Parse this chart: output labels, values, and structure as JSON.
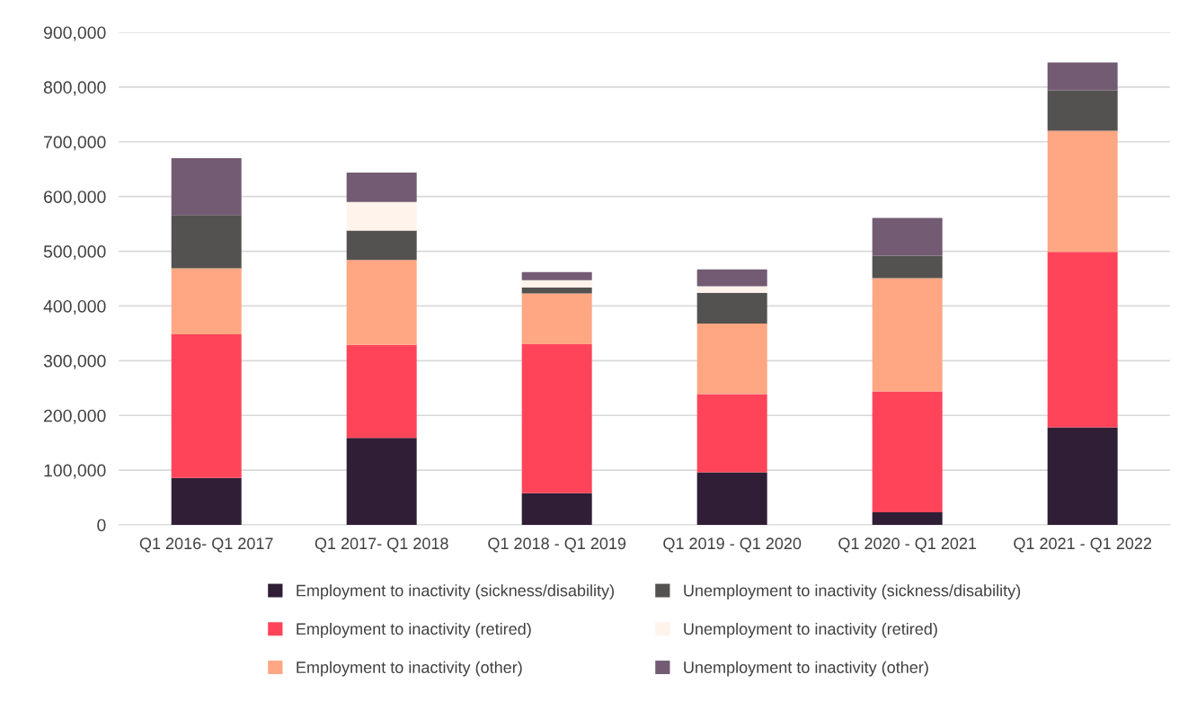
{
  "chart_data": {
    "type": "bar",
    "stacked": true,
    "categories": [
      "Q1 2016- Q1 2017",
      "Q1 2017- Q1 2018",
      "Q1 2018 - Q1 2019",
      "Q1 2019 - Q1 2020",
      "Q1 2020 - Q1 2021",
      "Q1 2021 - Q1 2022"
    ],
    "series": [
      {
        "name": "Employment to inactivity (sickness/disability)",
        "color": "#2f1e36",
        "values": [
          86000,
          159000,
          58000,
          96000,
          23000,
          178000
        ]
      },
      {
        "name": "Employment to inactivity (retired)",
        "color": "#ff4459",
        "values": [
          262000,
          170000,
          272000,
          143000,
          221000,
          321000
        ]
      },
      {
        "name": "Employment to inactivity (other)",
        "color": "#ffa683",
        "values": [
          121000,
          155000,
          93000,
          129000,
          207000,
          221000
        ]
      },
      {
        "name": "Unemployment to inactivity (sickness/disability)",
        "color": "#545250",
        "values": [
          97000,
          54000,
          11000,
          56000,
          41000,
          74000
        ]
      },
      {
        "name": "Unemployment to inactivity (retired)",
        "color": "#fff3ec",
        "values": [
          0,
          52000,
          13000,
          12000,
          0,
          0
        ]
      },
      {
        "name": "Unemployment to inactivity (other)",
        "color": "#735b73",
        "values": [
          104000,
          54000,
          15000,
          31000,
          69000,
          51000
        ]
      }
    ],
    "ylim": [
      0,
      900000
    ],
    "yticks": [
      {
        "value": 0,
        "label": "0"
      },
      {
        "value": 100000,
        "label": "100,000"
      },
      {
        "value": 200000,
        "label": "200,000"
      },
      {
        "value": 300000,
        "label": "300,000"
      },
      {
        "value": 400000,
        "label": "400,000"
      },
      {
        "value": 500000,
        "label": "500,000"
      },
      {
        "value": 600000,
        "label": "600,000"
      },
      {
        "value": 700000,
        "label": "700,000"
      },
      {
        "value": 800000,
        "label": "800,000"
      },
      {
        "value": 900000,
        "label": "900,000"
      }
    ],
    "grid": "y",
    "legend": "bottom"
  }
}
